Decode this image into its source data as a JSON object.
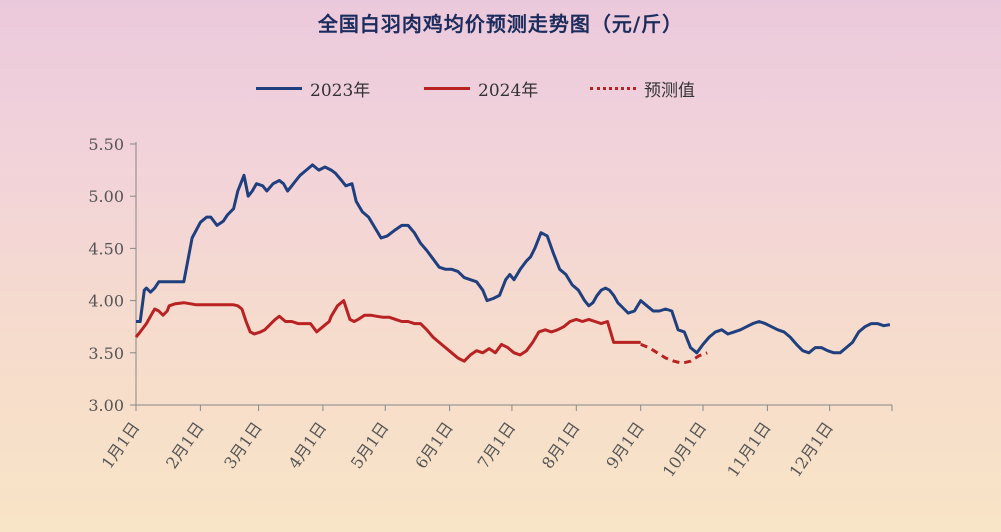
{
  "chart_data": {
    "type": "line",
    "title": "全国白羽肉鸡均价预测走势图（元/斤）",
    "ylim": [
      3.0,
      5.5
    ],
    "y_ticks": [
      "3.00",
      "3.50",
      "4.00",
      "4.50",
      "5.00",
      "5.50"
    ],
    "x_ticks": [
      "1月1日",
      "2月1日",
      "3月1日",
      "4月1日",
      "5月1日",
      "6月1日",
      "7月1日",
      "8月1日",
      "9月1日",
      "10月1日",
      "11月1日",
      "12月1日"
    ],
    "legend_position": "top",
    "series": [
      {
        "name": "2023年",
        "color": "#1f3f7f",
        "style": "solid",
        "x": [
          1,
          3,
          5,
          6,
          8,
          10,
          12,
          14,
          17,
          20,
          24,
          28,
          32,
          35,
          37,
          40,
          43,
          45,
          48,
          50,
          53,
          55,
          57,
          59,
          62,
          64,
          67,
          70,
          72,
          74,
          76,
          78,
          80,
          83,
          86,
          89,
          92,
          95,
          97,
          100,
          102,
          105,
          107,
          110,
          113,
          116,
          119,
          122,
          126,
          129,
          132,
          135,
          138,
          141,
          144,
          147,
          150,
          153,
          156,
          159,
          162,
          165,
          168,
          170,
          173,
          176,
          179,
          181,
          183,
          186,
          189,
          191,
          193,
          196,
          199,
          202,
          205,
          208,
          211,
          214,
          217,
          219,
          221,
          223,
          225,
          227,
          229,
          231,
          233,
          236,
          238,
          241,
          244,
          247,
          250,
          253,
          256,
          259,
          262,
          265,
          268,
          271,
          274,
          277,
          280,
          283,
          286,
          289,
          292,
          295,
          298,
          301,
          304,
          307,
          310,
          313,
          316,
          319,
          322,
          325,
          328,
          331,
          334,
          337,
          340,
          343,
          346,
          349,
          352,
          355,
          358,
          361,
          364
        ],
        "values": [
          3.8,
          3.8,
          4.1,
          4.12,
          4.08,
          4.12,
          4.18,
          4.18,
          4.18,
          4.18,
          4.18,
          4.6,
          4.75,
          4.8,
          4.8,
          4.72,
          4.76,
          4.82,
          4.88,
          5.05,
          5.2,
          5.0,
          5.05,
          5.12,
          5.1,
          5.05,
          5.12,
          5.15,
          5.12,
          5.05,
          5.1,
          5.15,
          5.2,
          5.25,
          5.3,
          5.25,
          5.28,
          5.25,
          5.22,
          5.15,
          5.1,
          5.12,
          4.95,
          4.85,
          4.8,
          4.7,
          4.6,
          4.62,
          4.68,
          4.72,
          4.72,
          4.65,
          4.55,
          4.48,
          4.4,
          4.32,
          4.3,
          4.3,
          4.28,
          4.22,
          4.2,
          4.18,
          4.1,
          4.0,
          4.02,
          4.05,
          4.2,
          4.25,
          4.2,
          4.3,
          4.38,
          4.42,
          4.5,
          4.65,
          4.62,
          4.45,
          4.3,
          4.25,
          4.15,
          4.1,
          4.0,
          3.95,
          3.98,
          4.05,
          4.1,
          4.12,
          4.1,
          4.05,
          3.98,
          3.92,
          3.88,
          3.9,
          4.0,
          3.95,
          3.9,
          3.9,
          3.92,
          3.9,
          3.72,
          3.7,
          3.55,
          3.5,
          3.58,
          3.65,
          3.7,
          3.72,
          3.68,
          3.7,
          3.72,
          3.75,
          3.78,
          3.8,
          3.78,
          3.75,
          3.72,
          3.7,
          3.65,
          3.58,
          3.52,
          3.5,
          3.55,
          3.55,
          3.52,
          3.5,
          3.5,
          3.55,
          3.6,
          3.7,
          3.75,
          3.78,
          3.78,
          3.76,
          3.77
        ]
      },
      {
        "name": "2024年",
        "color": "#b82222",
        "style": "solid",
        "x": [
          1,
          3,
          6,
          8,
          10,
          12,
          14,
          16,
          17,
          20,
          24,
          27,
          30,
          33,
          36,
          39,
          42,
          45,
          48,
          50,
          52,
          54,
          56,
          58,
          61,
          63,
          66,
          68,
          70,
          73,
          76,
          79,
          82,
          85,
          88,
          91,
          94,
          95,
          98,
          101,
          104,
          106,
          108,
          111,
          114,
          117,
          120,
          123,
          126,
          129,
          132,
          135,
          138,
          141,
          144,
          147,
          150,
          153,
          156,
          159,
          162,
          165,
          168,
          171,
          174,
          177,
          180,
          183,
          186,
          189,
          192,
          195,
          198,
          201,
          204,
          207,
          210,
          213,
          216,
          219,
          222,
          225,
          228,
          231,
          244
        ],
        "values": [
          3.65,
          3.7,
          3.78,
          3.85,
          3.92,
          3.9,
          3.86,
          3.9,
          3.95,
          3.97,
          3.98,
          3.97,
          3.96,
          3.96,
          3.96,
          3.96,
          3.96,
          3.96,
          3.96,
          3.95,
          3.92,
          3.8,
          3.7,
          3.68,
          3.7,
          3.72,
          3.78,
          3.82,
          3.85,
          3.8,
          3.8,
          3.78,
          3.78,
          3.78,
          3.7,
          3.75,
          3.8,
          3.85,
          3.95,
          4.0,
          3.82,
          3.8,
          3.82,
          3.86,
          3.86,
          3.85,
          3.84,
          3.84,
          3.82,
          3.8,
          3.8,
          3.78,
          3.78,
          3.72,
          3.65,
          3.6,
          3.55,
          3.5,
          3.45,
          3.42,
          3.48,
          3.52,
          3.5,
          3.54,
          3.5,
          3.58,
          3.55,
          3.5,
          3.48,
          3.52,
          3.6,
          3.7,
          3.72,
          3.7,
          3.72,
          3.75,
          3.8,
          3.82,
          3.8,
          3.82,
          3.8,
          3.78,
          3.8,
          3.6,
          3.6
        ]
      },
      {
        "name": "预测值",
        "color": "#b82222",
        "style": "dashed",
        "x": [
          244,
          248,
          252,
          256,
          260,
          264,
          268,
          272,
          276
        ],
        "values": [
          3.58,
          3.55,
          3.5,
          3.45,
          3.42,
          3.4,
          3.42,
          3.47,
          3.5
        ]
      }
    ]
  }
}
